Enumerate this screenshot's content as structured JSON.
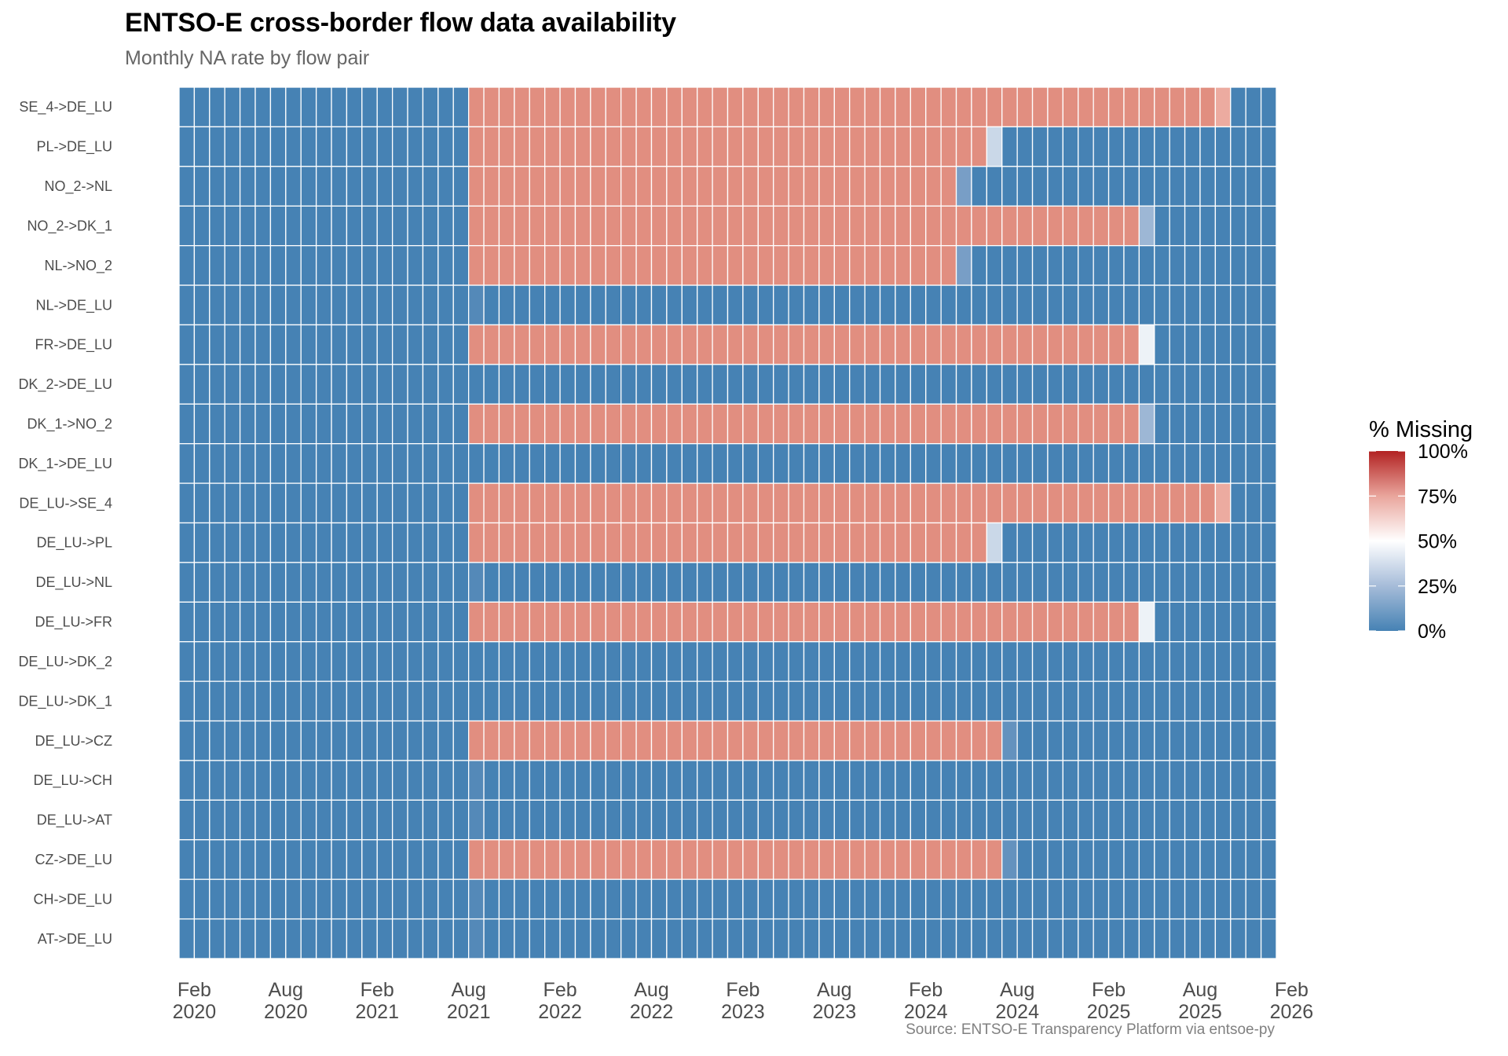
{
  "chart_data": {
    "type": "heatmap",
    "title": "ENTSO-E cross-border flow data availability",
    "subtitle": "Monthly NA rate by flow pair",
    "caption": "Source: ENTSO-E Transparency Platform via entsoe-py",
    "xlabel": "",
    "ylabel": "",
    "x_start": "2020-01",
    "x_end": "2025-12",
    "x_tick_labels": [
      {
        "month": "2020-02",
        "label": [
          "Feb",
          "2020"
        ]
      },
      {
        "month": "2020-08",
        "label": [
          "Aug",
          "2020"
        ]
      },
      {
        "month": "2021-02",
        "label": [
          "Feb",
          "2021"
        ]
      },
      {
        "month": "2021-08",
        "label": [
          "Aug",
          "2021"
        ]
      },
      {
        "month": "2022-02",
        "label": [
          "Feb",
          "2022"
        ]
      },
      {
        "month": "2022-08",
        "label": [
          "Aug",
          "2022"
        ]
      },
      {
        "month": "2023-02",
        "label": [
          "Feb",
          "2023"
        ]
      },
      {
        "month": "2023-08",
        "label": [
          "Aug",
          "2023"
        ]
      },
      {
        "month": "2024-02",
        "label": [
          "Feb",
          "2024"
        ]
      },
      {
        "month": "2024-08",
        "label": [
          "Aug",
          "2024"
        ]
      },
      {
        "month": "2025-02",
        "label": [
          "Feb",
          "2025"
        ]
      },
      {
        "month": "2025-08",
        "label": [
          "Aug",
          "2025"
        ]
      },
      {
        "month": "2026-02",
        "label": [
          "Feb",
          "2026"
        ]
      }
    ],
    "legend": {
      "title": "% Missing",
      "position": "right",
      "breaks": [
        0,
        25,
        50,
        75,
        100
      ],
      "labels": [
        "0%",
        "25%",
        "50%",
        "75%",
        "100%"
      ],
      "low_color": "#4682B4",
      "mid_color": "#FFFFFF",
      "high_color": "#B22222",
      "midpoint": 50,
      "limits": [
        0,
        100
      ]
    },
    "value_encoding": "runs of [value_percent, number_of_months] starting at x_start",
    "rows": [
      {
        "name": "SE_4->DE_LU",
        "runs": [
          [
            0,
            19
          ],
          [
            77,
            49
          ],
          [
            70,
            1
          ],
          [
            0,
            3
          ]
        ]
      },
      {
        "name": "PL->DE_LU",
        "runs": [
          [
            0,
            19
          ],
          [
            77,
            34
          ],
          [
            35,
            1
          ],
          [
            0,
            18
          ]
        ]
      },
      {
        "name": "NO_2->NL",
        "runs": [
          [
            0,
            19
          ],
          [
            77,
            32
          ],
          [
            12,
            1
          ],
          [
            0,
            20
          ]
        ]
      },
      {
        "name": "NO_2->DK_1",
        "runs": [
          [
            0,
            19
          ],
          [
            77,
            44
          ],
          [
            22,
            1
          ],
          [
            0,
            8
          ]
        ]
      },
      {
        "name": "NL->NO_2",
        "runs": [
          [
            0,
            19
          ],
          [
            77,
            32
          ],
          [
            12,
            1
          ],
          [
            0,
            20
          ]
        ]
      },
      {
        "name": "NL->DE_LU",
        "runs": [
          [
            0,
            19
          ],
          [
            3,
            1
          ],
          [
            0,
            52
          ]
        ]
      },
      {
        "name": "FR->DE_LU",
        "runs": [
          [
            0,
            19
          ],
          [
            77,
            44
          ],
          [
            45,
            1
          ],
          [
            0,
            8
          ]
        ]
      },
      {
        "name": "DK_2->DE_LU",
        "runs": [
          [
            0,
            72
          ]
        ]
      },
      {
        "name": "DK_1->NO_2",
        "runs": [
          [
            0,
            19
          ],
          [
            77,
            44
          ],
          [
            22,
            1
          ],
          [
            0,
            8
          ]
        ]
      },
      {
        "name": "DK_1->DE_LU",
        "runs": [
          [
            0,
            72
          ]
        ]
      },
      {
        "name": "DE_LU->SE_4",
        "runs": [
          [
            0,
            19
          ],
          [
            77,
            49
          ],
          [
            70,
            1
          ],
          [
            0,
            3
          ]
        ]
      },
      {
        "name": "DE_LU->PL",
        "runs": [
          [
            0,
            19
          ],
          [
            77,
            34
          ],
          [
            35,
            1
          ],
          [
            0,
            18
          ]
        ]
      },
      {
        "name": "DE_LU->NL",
        "runs": [
          [
            0,
            19
          ],
          [
            3,
            1
          ],
          [
            0,
            52
          ]
        ]
      },
      {
        "name": "DE_LU->FR",
        "runs": [
          [
            0,
            19
          ],
          [
            77,
            44
          ],
          [
            45,
            1
          ],
          [
            0,
            8
          ]
        ]
      },
      {
        "name": "DE_LU->DK_2",
        "runs": [
          [
            0,
            72
          ]
        ]
      },
      {
        "name": "DE_LU->DK_1",
        "runs": [
          [
            0,
            72
          ]
        ]
      },
      {
        "name": "DE_LU->CZ",
        "runs": [
          [
            0,
            19
          ],
          [
            77,
            35
          ],
          [
            7,
            1
          ],
          [
            0,
            17
          ]
        ]
      },
      {
        "name": "DE_LU->CH",
        "runs": [
          [
            0,
            19
          ],
          [
            3,
            1
          ],
          [
            0,
            52
          ]
        ]
      },
      {
        "name": "DE_LU->AT",
        "runs": [
          [
            0,
            19
          ],
          [
            3,
            1
          ],
          [
            0,
            52
          ]
        ]
      },
      {
        "name": "CZ->DE_LU",
        "runs": [
          [
            0,
            19
          ],
          [
            77,
            35
          ],
          [
            7,
            1
          ],
          [
            0,
            17
          ]
        ]
      },
      {
        "name": "CH->DE_LU",
        "runs": [
          [
            0,
            19
          ],
          [
            3,
            1
          ],
          [
            0,
            52
          ]
        ]
      },
      {
        "name": "AT->DE_LU",
        "runs": [
          [
            0,
            19
          ],
          [
            3,
            1
          ],
          [
            0,
            52
          ]
        ]
      }
    ]
  }
}
